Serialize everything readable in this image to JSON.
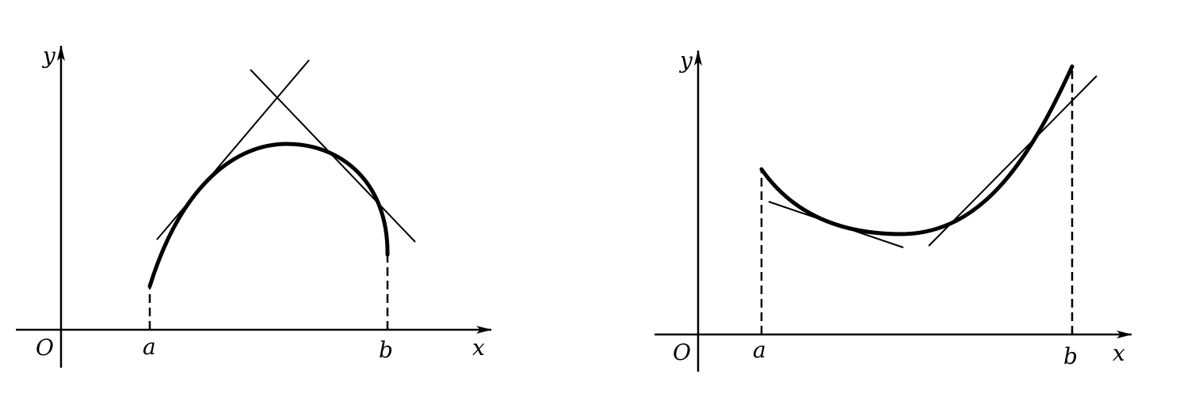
{
  "figures": [
    {
      "id": "concave-down",
      "labels": {
        "origin": "O",
        "x_axis": "x",
        "y_axis": "y",
        "left_bound": "a",
        "right_bound": "b"
      }
    },
    {
      "id": "concave-up",
      "labels": {
        "origin": "O",
        "x_axis": "x",
        "y_axis": "y",
        "left_bound": "a",
        "right_bound": "b"
      }
    }
  ],
  "colors": {
    "ink": "#000000",
    "background": "#ffffff"
  }
}
